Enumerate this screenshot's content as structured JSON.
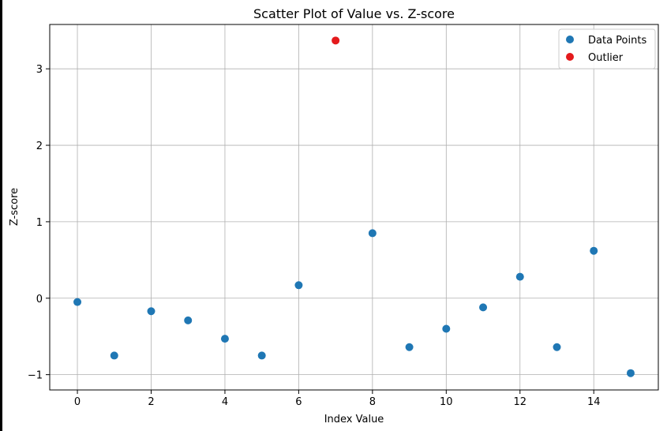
{
  "chart_data": {
    "type": "scatter",
    "title": "Scatter Plot of Value vs. Z-score",
    "xlabel": "Index Value",
    "ylabel": "Z-score",
    "xlim": [
      -0.75,
      15.75
    ],
    "ylim": [
      -1.2,
      3.58
    ],
    "xticks": [
      0,
      2,
      4,
      6,
      8,
      10,
      12,
      14
    ],
    "yticks": [
      -1,
      0,
      1,
      2,
      3
    ],
    "grid": true,
    "legend_position": "top-right",
    "series": [
      {
        "name": "Data Points",
        "color": "#1f77b4",
        "points": [
          {
            "x": 0,
            "y": -0.05
          },
          {
            "x": 1,
            "y": -0.75
          },
          {
            "x": 2,
            "y": -0.17
          },
          {
            "x": 3,
            "y": -0.29
          },
          {
            "x": 4,
            "y": -0.53
          },
          {
            "x": 5,
            "y": -0.75
          },
          {
            "x": 6,
            "y": 0.17
          },
          {
            "x": 8,
            "y": 0.85
          },
          {
            "x": 9,
            "y": -0.64
          },
          {
            "x": 10,
            "y": -0.4
          },
          {
            "x": 11,
            "y": -0.12
          },
          {
            "x": 12,
            "y": 0.28
          },
          {
            "x": 13,
            "y": -0.64
          },
          {
            "x": 14,
            "y": 0.62
          },
          {
            "x": 15,
            "y": -0.98
          }
        ]
      },
      {
        "name": "Outlier",
        "color": "#e41a1c",
        "points": [
          {
            "x": 7,
            "y": 3.37
          }
        ]
      }
    ]
  }
}
